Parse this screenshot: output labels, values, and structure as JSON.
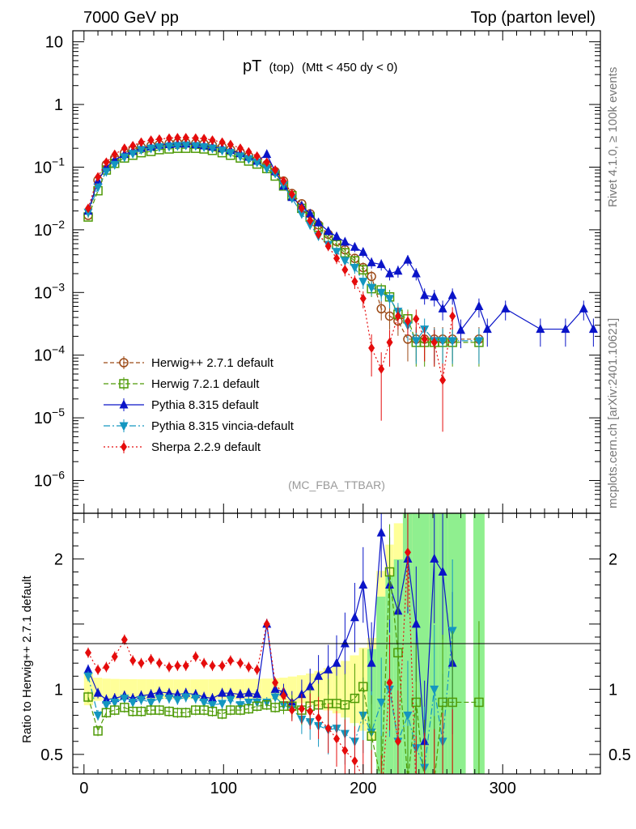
{
  "header": {
    "left": "7000 GeV pp",
    "right": "Top (parton level)"
  },
  "side_labels": {
    "rivet": "Rivet 4.1.0, ≥ 100k events",
    "mcplots": "mcplots.cern.ch [arXiv:2401.10621]"
  },
  "chart_data": {
    "type": "line",
    "title_main": "pT",
    "title_sub": "(top)",
    "title_cut": "(Mtt < 450 dy < 0)",
    "watermark": "(MC_FBA_TTBAR)",
    "xlabel": "",
    "ylabel_top": "",
    "ylabel_ratio": "Ratio to Herwig++ 2.7.1 default",
    "xlim": [
      -8,
      370
    ],
    "ylim_top": [
      3e-07,
      15
    ],
    "ylim_ratio": [
      0.35,
      2.35
    ],
    "yscale_top": "log",
    "x_ticks": [
      0,
      100,
      200,
      300
    ],
    "y_ticks_top": [
      {
        "exp": -6,
        "label": "10",
        "sup": "−6"
      },
      {
        "exp": -5,
        "label": "10",
        "sup": "−5"
      },
      {
        "exp": -4,
        "label": "10",
        "sup": "−4"
      },
      {
        "exp": -3,
        "label": "10",
        "sup": "−3"
      },
      {
        "exp": -2,
        "label": "10",
        "sup": "−2"
      },
      {
        "exp": -1,
        "label": "10",
        "sup": "−1"
      },
      {
        "exp": 0,
        "label": "1",
        "sup": ""
      },
      {
        "exp": 1,
        "label": "10",
        "sup": ""
      }
    ],
    "y_ticks_ratio": [
      {
        "value": 0.5,
        "label": "0.5"
      },
      {
        "value": 1,
        "label": "1"
      },
      {
        "value": 2,
        "label": "2"
      }
    ],
    "legend_position": "lower-left",
    "series": [
      {
        "name": "Herwig++ 2.7.1 default",
        "color": "#9c4a16",
        "marker": "circle-open",
        "dash": "5,3",
        "x": [
          3,
          10,
          16,
          22,
          29,
          35,
          41,
          48,
          54,
          61,
          67,
          73,
          80,
          86,
          92,
          99,
          105,
          112,
          118,
          124,
          131,
          137,
          143,
          149,
          156,
          162,
          168,
          175,
          181,
          187,
          194,
          200,
          206,
          213,
          219,
          225,
          232,
          238,
          244,
          251,
          257,
          264,
          283
        ],
        "y": [
          0.017,
          0.062,
          0.11,
          0.14,
          0.17,
          0.19,
          0.21,
          0.22,
          0.23,
          0.24,
          0.245,
          0.245,
          0.24,
          0.235,
          0.225,
          0.21,
          0.19,
          0.17,
          0.15,
          0.13,
          0.11,
          0.085,
          0.06,
          0.038,
          0.026,
          0.018,
          0.012,
          0.0085,
          0.0065,
          0.0048,
          0.0035,
          0.0025,
          0.0018,
          0.00055,
          0.00042,
          0.00035,
          0.00018,
          0.00018,
          0.00018,
          0.00018,
          0.00018,
          0.00018,
          0.00018
        ]
      },
      {
        "name": "Herwig 7.2.1 default",
        "color": "#4e9a06",
        "marker": "square-open",
        "dash": "6,3",
        "x": [
          3,
          10,
          16,
          22,
          29,
          35,
          41,
          48,
          54,
          61,
          67,
          73,
          80,
          86,
          92,
          99,
          105,
          112,
          118,
          124,
          131,
          137,
          143,
          149,
          156,
          162,
          168,
          175,
          181,
          187,
          194,
          200,
          206,
          213,
          219,
          225,
          232,
          238,
          244,
          251,
          257,
          264,
          283
        ],
        "y": [
          0.016,
          0.042,
          0.09,
          0.115,
          0.14,
          0.155,
          0.17,
          0.178,
          0.19,
          0.195,
          0.2,
          0.2,
          0.2,
          0.195,
          0.185,
          0.17,
          0.155,
          0.14,
          0.125,
          0.112,
          0.095,
          0.072,
          0.05,
          0.035,
          0.022,
          0.016,
          0.011,
          0.0075,
          0.0058,
          0.0043,
          0.0032,
          0.0023,
          0.00115,
          0.0011,
          0.00085,
          0.00045,
          0.00038,
          0.00016,
          0.00016,
          0.00016,
          0.00016,
          0.00016,
          0.00016
        ]
      },
      {
        "name": "Pythia 8.315 default",
        "color": "#0a14c8",
        "marker": "triangle-up",
        "dash": "",
        "x": [
          3,
          10,
          16,
          22,
          29,
          35,
          41,
          48,
          54,
          61,
          67,
          73,
          80,
          86,
          92,
          99,
          105,
          112,
          118,
          124,
          131,
          137,
          143,
          149,
          156,
          162,
          168,
          175,
          181,
          187,
          194,
          200,
          206,
          213,
          219,
          225,
          232,
          238,
          244,
          251,
          257,
          264,
          270,
          283,
          289,
          302,
          327,
          345,
          358,
          365
        ],
        "y": [
          0.02,
          0.06,
          0.1,
          0.13,
          0.16,
          0.18,
          0.2,
          0.21,
          0.225,
          0.23,
          0.235,
          0.235,
          0.23,
          0.22,
          0.21,
          0.2,
          0.185,
          0.165,
          0.145,
          0.125,
          0.16,
          0.085,
          0.05,
          0.033,
          0.024,
          0.018,
          0.013,
          0.0095,
          0.0078,
          0.0064,
          0.0053,
          0.0044,
          0.003,
          0.0028,
          0.002,
          0.0022,
          0.0033,
          0.002,
          0.0009,
          0.00085,
          0.00055,
          0.0009,
          0.00025,
          0.0006,
          0.00026,
          0.00055,
          0.00026,
          0.00026,
          0.00055,
          0.00026
        ]
      },
      {
        "name": "Pythia 8.315 vincia-default",
        "color": "#1496c0",
        "marker": "triangle-down",
        "dash": "8,3,2,3",
        "x": [
          3,
          10,
          16,
          22,
          29,
          35,
          41,
          48,
          54,
          61,
          67,
          73,
          80,
          86,
          92,
          99,
          105,
          112,
          118,
          124,
          131,
          137,
          143,
          149,
          156,
          162,
          168,
          175,
          181,
          187,
          194,
          200,
          206,
          213,
          219,
          225,
          232,
          238,
          244,
          251,
          257,
          264,
          283
        ],
        "y": [
          0.019,
          0.048,
          0.085,
          0.11,
          0.145,
          0.165,
          0.19,
          0.2,
          0.21,
          0.215,
          0.22,
          0.225,
          0.22,
          0.21,
          0.2,
          0.185,
          0.17,
          0.15,
          0.135,
          0.12,
          0.095,
          0.08,
          0.052,
          0.032,
          0.018,
          0.012,
          0.008,
          0.0058,
          0.0045,
          0.0032,
          0.0025,
          0.0015,
          0.0012,
          0.001,
          0.0008,
          0.0005,
          0.0003,
          0.00017,
          0.00026,
          0.00017,
          0.00017,
          0.00017,
          0.00017
        ]
      },
      {
        "name": "Sherpa 2.2.9 default",
        "color": "#e50c0c",
        "marker": "diamond",
        "dash": "2,3",
        "x": [
          3,
          10,
          16,
          22,
          29,
          35,
          41,
          48,
          54,
          61,
          67,
          73,
          80,
          86,
          92,
          99,
          105,
          112,
          118,
          124,
          131,
          137,
          143,
          149,
          156,
          162,
          168,
          175,
          181,
          187,
          194,
          200,
          206,
          213,
          219,
          225,
          232,
          238,
          244,
          251,
          257,
          264
        ],
        "y": [
          0.022,
          0.07,
          0.12,
          0.16,
          0.2,
          0.22,
          0.25,
          0.27,
          0.28,
          0.29,
          0.295,
          0.295,
          0.29,
          0.285,
          0.27,
          0.25,
          0.23,
          0.2,
          0.175,
          0.15,
          0.12,
          0.09,
          0.06,
          0.037,
          0.022,
          0.014,
          0.0085,
          0.0055,
          0.0035,
          0.0023,
          0.0015,
          0.0008,
          0.00013,
          6e-05,
          0.00016,
          0.00042,
          0.00035,
          0.00038,
          0.00018,
          0.00016,
          4e-05,
          0.00042
        ]
      }
    ],
    "ratio_series": [
      {
        "name": "Pythia 8.315 default",
        "color": "#0a14c8",
        "marker": "triangle-up",
        "dash": "",
        "x": [
          3,
          10,
          16,
          22,
          29,
          35,
          41,
          48,
          54,
          61,
          67,
          73,
          80,
          86,
          92,
          99,
          105,
          112,
          118,
          124,
          131,
          137,
          143,
          149,
          156,
          162,
          168,
          175,
          181,
          187,
          194,
          200,
          206,
          213,
          219,
          225,
          232,
          238,
          244,
          251,
          257,
          264
        ],
        "y": [
          1.15,
          0.97,
          0.92,
          0.93,
          0.95,
          0.93,
          0.95,
          0.96,
          0.98,
          0.97,
          0.96,
          0.97,
          0.96,
          0.94,
          0.93,
          0.97,
          0.97,
          0.96,
          0.97,
          0.96,
          1.5,
          1.0,
          0.98,
          0.9,
          0.96,
          1.02,
          1.1,
          1.15,
          1.2,
          1.35,
          1.55,
          1.8,
          1.2,
          2.2,
          1.8,
          1.6,
          2.0,
          1.5,
          0.6,
          2.0,
          1.9,
          1.2
        ]
      },
      {
        "name": "Pythia 8.315 vincia-default",
        "color": "#1496c0",
        "marker": "triangle-down",
        "dash": "8,3,2,3",
        "x": [
          3,
          10,
          16,
          22,
          29,
          35,
          41,
          48,
          54,
          61,
          67,
          73,
          80,
          86,
          92,
          99,
          105,
          112,
          118,
          124,
          131,
          137,
          143,
          149,
          156,
          162,
          168,
          175,
          181,
          187,
          194,
          200,
          206,
          213,
          219,
          225,
          232,
          238,
          244,
          251,
          257,
          264
        ],
        "y": [
          1.1,
          0.8,
          0.88,
          0.9,
          0.93,
          0.9,
          0.92,
          0.9,
          0.93,
          0.93,
          0.92,
          0.94,
          0.93,
          0.9,
          0.88,
          0.89,
          0.92,
          0.88,
          0.9,
          0.9,
          0.9,
          0.94,
          0.88,
          0.85,
          0.77,
          0.75,
          0.72,
          0.69,
          0.7,
          0.66,
          0.6,
          0.8,
          0.67,
          0.9,
          1.0,
          0.6,
          0.8,
          0.55,
          0.4,
          1.0,
          0.6,
          1.45
        ]
      },
      {
        "name": "Herwig 7.2.1 default",
        "color": "#4e9a06",
        "marker": "square-open",
        "dash": "6,3",
        "x": [
          3,
          10,
          16,
          22,
          29,
          35,
          41,
          48,
          54,
          61,
          67,
          73,
          80,
          86,
          92,
          99,
          105,
          112,
          118,
          124,
          131,
          137,
          143,
          149,
          156,
          162,
          168,
          175,
          181,
          187,
          194,
          200,
          206,
          213,
          219,
          225,
          232,
          238,
          244,
          251,
          257,
          264,
          283
        ],
        "y": [
          0.94,
          0.68,
          0.82,
          0.84,
          0.86,
          0.83,
          0.83,
          0.84,
          0.84,
          0.83,
          0.82,
          0.82,
          0.84,
          0.84,
          0.83,
          0.81,
          0.84,
          0.84,
          0.85,
          0.87,
          0.88,
          0.86,
          0.87,
          0.87,
          0.84,
          0.87,
          0.88,
          0.89,
          0.89,
          0.88,
          0.93,
          1.02,
          0.64,
          0.3,
          1.9,
          1.28,
          0.3,
          0.9,
          0.3,
          0.3,
          0.9,
          0.9,
          0.9
        ]
      },
      {
        "name": "Sherpa 2.2.9 default",
        "color": "#e50c0c",
        "marker": "diamond",
        "dash": "2,3",
        "x": [
          3,
          10,
          16,
          22,
          29,
          35,
          41,
          48,
          54,
          61,
          67,
          73,
          80,
          86,
          92,
          99,
          105,
          112,
          118,
          124,
          131,
          137,
          143,
          149,
          156,
          162,
          168,
          175,
          181,
          187,
          194,
          200,
          206,
          213,
          219,
          225,
          232,
          238,
          244,
          251,
          257,
          264
        ],
        "y": [
          1.28,
          1.15,
          1.17,
          1.25,
          1.38,
          1.22,
          1.2,
          1.23,
          1.2,
          1.17,
          1.18,
          1.18,
          1.25,
          1.2,
          1.18,
          1.18,
          1.22,
          1.2,
          1.17,
          1.15,
          1.5,
          1.05,
          0.95,
          0.84,
          0.85,
          0.83,
          0.78,
          0.7,
          0.62,
          0.53,
          0.45,
          0.32,
          0.22,
          0.15,
          1.05,
          0.6,
          2.05,
          0.2,
          0.2,
          0.2,
          0.3,
          0.3
        ]
      }
    ]
  }
}
